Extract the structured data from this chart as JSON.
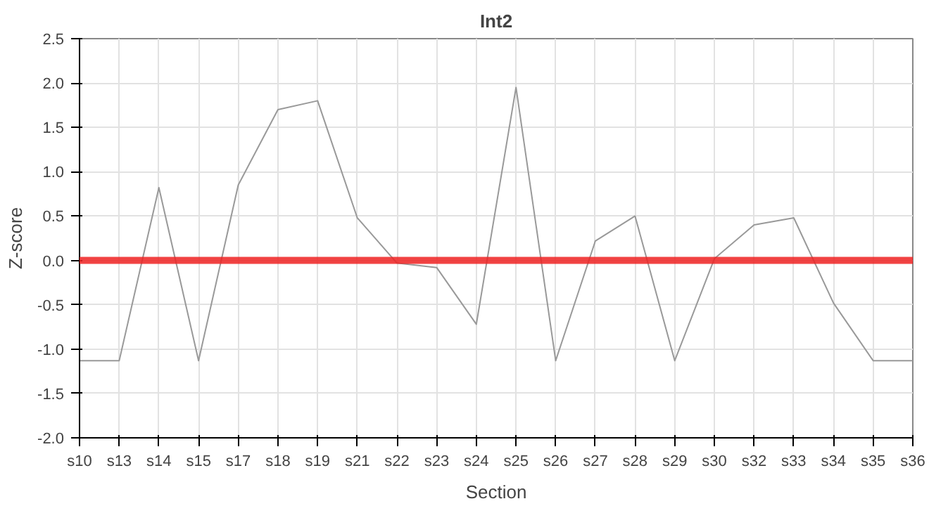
{
  "chart_data": {
    "type": "line",
    "title": "Int2",
    "xlabel": "Section",
    "ylabel": "Z-score",
    "categories": [
      "s10",
      "s13",
      "s14",
      "s15",
      "s17",
      "s18",
      "s19",
      "s21",
      "s22",
      "s23",
      "s24",
      "s25",
      "s26",
      "s27",
      "s28",
      "s29",
      "s30",
      "s32",
      "s33",
      "s34",
      "s35",
      "s36"
    ],
    "series": [
      {
        "color": "#999999",
        "values": [
          -1.13,
          -1.13,
          0.82,
          -1.13,
          0.85,
          1.7,
          1.8,
          0.48,
          -0.03,
          -0.08,
          -0.72,
          1.95,
          -1.13,
          0.22,
          0.5,
          -1.13,
          0.02,
          0.4,
          0.48,
          -0.48,
          -1.13,
          -1.13
        ]
      }
    ],
    "ylim": [
      -2.0,
      2.5
    ],
    "yticks": [
      {
        "value": -2,
        "label": "-2.0"
      },
      {
        "value": -1.5,
        "label": "-1.5"
      },
      {
        "value": -1,
        "label": "-1.0"
      },
      {
        "value": -0.5,
        "label": "-0.5"
      },
      {
        "value": 0,
        "label": "0.0"
      },
      {
        "value": 0.5,
        "label": "0.5"
      },
      {
        "value": 1,
        "label": "1.0"
      },
      {
        "value": 1.5,
        "label": "1.5"
      },
      {
        "value": 2,
        "label": "2.0"
      },
      {
        "value": 2.5,
        "label": "2.5"
      }
    ],
    "grid": true,
    "ref_lines": [
      {
        "axis": "y",
        "value": 0,
        "color": "#ee2222"
      }
    ]
  }
}
